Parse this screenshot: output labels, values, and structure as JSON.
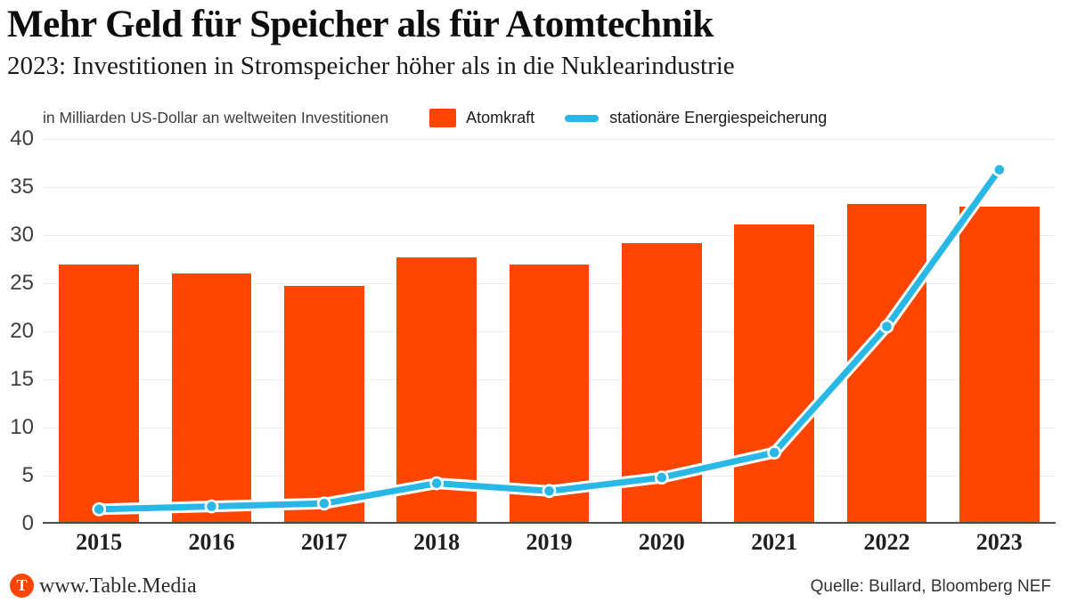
{
  "header": {
    "title": "Mehr Geld für Speicher als für Atomtechnik",
    "subtitle": "2023: Investitionen in Stromspeicher höher als in die Nuklearindustrie"
  },
  "chart_data": {
    "type": "combo-bar-line",
    "title": "Mehr Geld für Speicher als für Atomtechnik",
    "subtitle": "2023: Investitionen in Stromspeicher höher als in die Nuklearindustrie",
    "unit_note": "in Milliarden US-Dollar an weltweiten Investitionen",
    "categories": [
      "2015",
      "2016",
      "2017",
      "2018",
      "2019",
      "2020",
      "2021",
      "2022",
      "2023"
    ],
    "series": [
      {
        "name": "Atomkraft",
        "type": "bar",
        "color": "#ff4500",
        "values": [
          26.9,
          26.0,
          24.7,
          27.7,
          26.9,
          29.2,
          31.1,
          33.2,
          33.0
        ]
      },
      {
        "name": "stationäre Energiespeicherung",
        "type": "line",
        "color": "#29b8e5",
        "values": [
          1.5,
          1.8,
          2.1,
          4.2,
          3.4,
          4.8,
          7.4,
          20.5,
          36.8
        ]
      }
    ],
    "ylim": [
      0,
      40
    ],
    "ytick_step": 5,
    "grid": "horizontal",
    "legend_position": "top"
  },
  "colors": {
    "bar_orange": "#ff4500",
    "line_blue": "#29b8e5",
    "gridline": "#ededed",
    "axis_baseline": "#4d4d4d"
  },
  "footer": {
    "logo_letter": "T",
    "site_label": "www.Table.Media",
    "source": "Quelle: Bullard, Bloomberg NEF"
  }
}
